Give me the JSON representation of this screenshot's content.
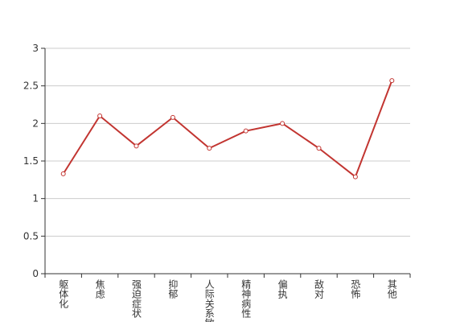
{
  "chart_data": {
    "type": "line",
    "categories": [
      "躯体化",
      "焦虑",
      "强迫症状",
      "抑郁",
      "人际关系敏感",
      "精神病性",
      "偏执",
      "敌对",
      "恐怖",
      "其他"
    ],
    "series": [
      {
        "color": "#c23531",
        "values": [
          1.33,
          2.1,
          1.7,
          2.08,
          1.67,
          1.9,
          2.0,
          1.67,
          1.29,
          2.57
        ]
      }
    ],
    "ylim": [
      0,
      3
    ],
    "yticks": [
      0,
      0.5,
      1,
      1.5,
      2,
      2.5,
      3
    ],
    "grid": true
  }
}
